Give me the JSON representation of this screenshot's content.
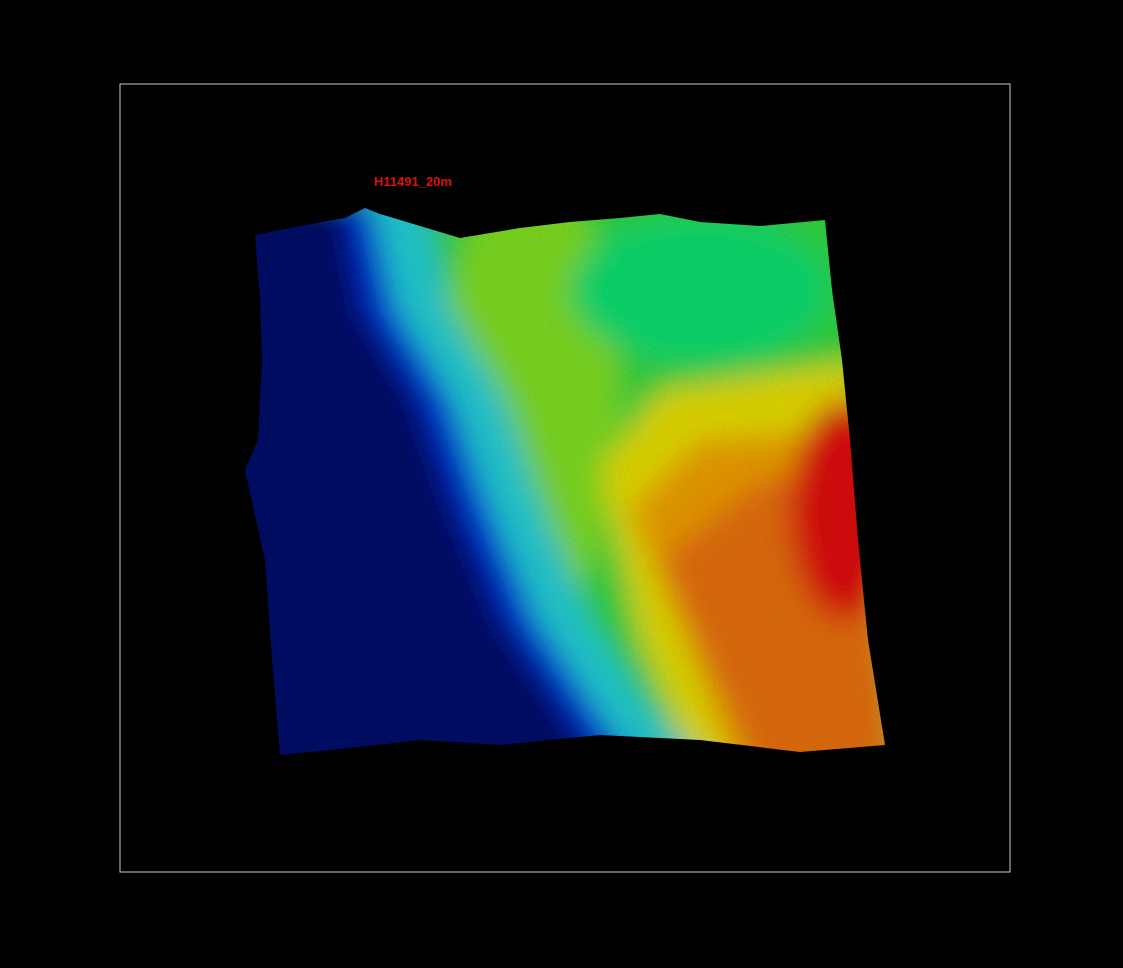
{
  "label": "H11491_20m"
}
